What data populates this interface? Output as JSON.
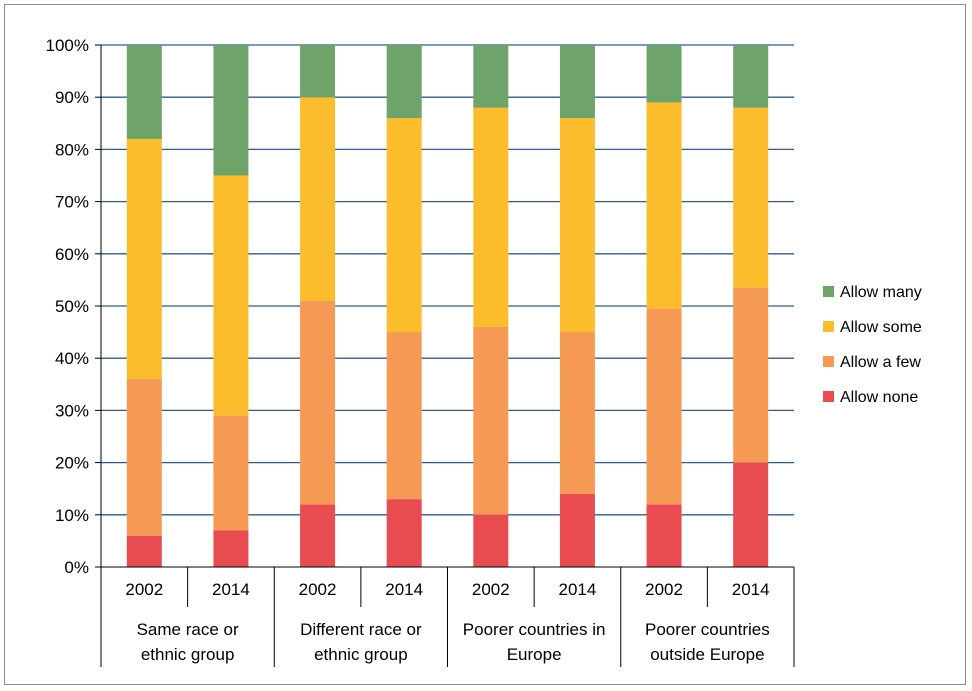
{
  "chart_data": {
    "type": "bar",
    "stacked": true,
    "percent": true,
    "ylim": [
      0,
      100
    ],
    "ytick_step": 10,
    "ytick_labels": [
      "0%",
      "10%",
      "20%",
      "30%",
      "40%",
      "50%",
      "60%",
      "70%",
      "80%",
      "90%",
      "100%"
    ],
    "grid": true,
    "legend_position": "right",
    "categories": [
      "2002",
      "2014",
      "2002",
      "2014",
      "2002",
      "2014",
      "2002",
      "2014"
    ],
    "groups": [
      {
        "label": "Same race or ethnic group",
        "lines": [
          "Same race or",
          "ethnic group"
        ]
      },
      {
        "label": "Different race or ethnic group",
        "lines": [
          "Different race or",
          "ethnic group"
        ]
      },
      {
        "label": "Poorer countries in Europe",
        "lines": [
          "Poorer countries in",
          "Europe"
        ]
      },
      {
        "label": "Poorer countries outside Europe",
        "lines": [
          "Poorer countries",
          "outside Europe"
        ]
      }
    ],
    "series": [
      {
        "name": "Allow none",
        "color": "#e84c51",
        "values": [
          6,
          7,
          12,
          13,
          10,
          14,
          12,
          20
        ]
      },
      {
        "name": "Allow a few",
        "color": "#f59954",
        "values": [
          30,
          22,
          39,
          32,
          36,
          31,
          37.5,
          33.5
        ]
      },
      {
        "name": "Allow some",
        "color": "#fbbd2c",
        "values": [
          46,
          46,
          39,
          41,
          42,
          41,
          39.5,
          34.5
        ]
      },
      {
        "name": "Allow many",
        "color": "#6ea46a",
        "values": [
          18,
          25,
          10,
          14,
          12,
          14,
          11,
          12
        ]
      }
    ],
    "legend_order": [
      "Allow many",
      "Allow some",
      "Allow a few",
      "Allow none"
    ],
    "gridline_color": "#2c5d8f"
  }
}
